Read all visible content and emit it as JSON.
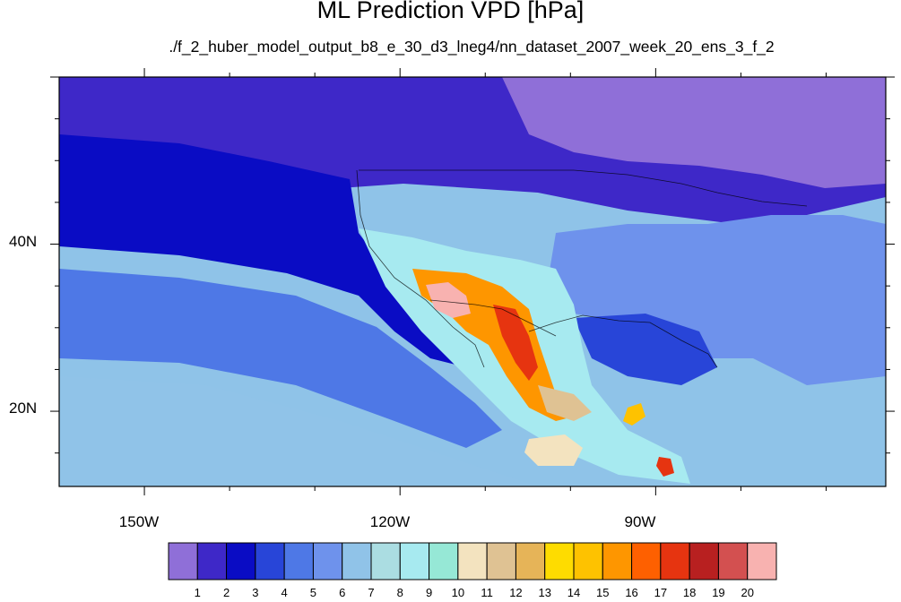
{
  "map": {
    "title": "ML Prediction VPD [hPa]",
    "subtitle": "./f_2_huber_model_output_b8_e_30_d3_lneg4/nn_dataset_2007_week_20_ens_3_f_2",
    "lat_labels": [
      "40N",
      "20N"
    ],
    "lon_labels": [
      "150W",
      "120W",
      "90W"
    ],
    "lon_range": [
      -160,
      -63
    ],
    "lat_range": [
      11,
      60
    ],
    "background_color": "#8fc3e8",
    "colorbar": {
      "levels": [
        "1",
        "2",
        "3",
        "4",
        "5",
        "6",
        "7",
        "8",
        "9",
        "10",
        "11",
        "12",
        "13",
        "14",
        "15",
        "16",
        "17",
        "18",
        "19",
        "20"
      ],
      "colors": [
        "#8f6fd8",
        "#3e28c8",
        "#0a0cc4",
        "#2845d8",
        "#4e78e6",
        "#6e92ec",
        "#90c3e8",
        "#abdde2",
        "#a7eaf0",
        "#96e8d6",
        "#f3e3bf",
        "#dfc293",
        "#e6b458",
        "#fedc00",
        "#fec200",
        "#fe9600",
        "#fe6000",
        "#e63410",
        "#b82020",
        "#d35050",
        "#f8b2b0"
      ]
    },
    "regions": [
      {
        "name": "northeast-pacific",
        "color": "#3e28c8"
      },
      {
        "name": "offshore-band",
        "color": "#0a0cc4"
      },
      {
        "name": "central-pacific",
        "color": "#4e78e6"
      },
      {
        "name": "tropical-pacific",
        "color": "#90c3e8"
      },
      {
        "name": "canada-north",
        "color": "#8f6fd8"
      },
      {
        "name": "eastern-us",
        "color": "#6e92ec"
      },
      {
        "name": "gulf-coast",
        "color": "#2845d8"
      },
      {
        "name": "southwest-plateau",
        "color": "#a7eaf0"
      },
      {
        "name": "desert-southwest",
        "color": "#fe9600"
      },
      {
        "name": "central-valley-max",
        "color": "#f8b2b0"
      },
      {
        "name": "sierra-madre-occidental",
        "color": "#e63410"
      },
      {
        "name": "mexican-plateau",
        "color": "#dfc293"
      },
      {
        "name": "east-pacific-dry-patch",
        "color": "#f3e3bf"
      },
      {
        "name": "caribbean-dry-spot",
        "color": "#fec200"
      },
      {
        "name": "central-america-hotspot",
        "color": "#e63410"
      }
    ]
  }
}
